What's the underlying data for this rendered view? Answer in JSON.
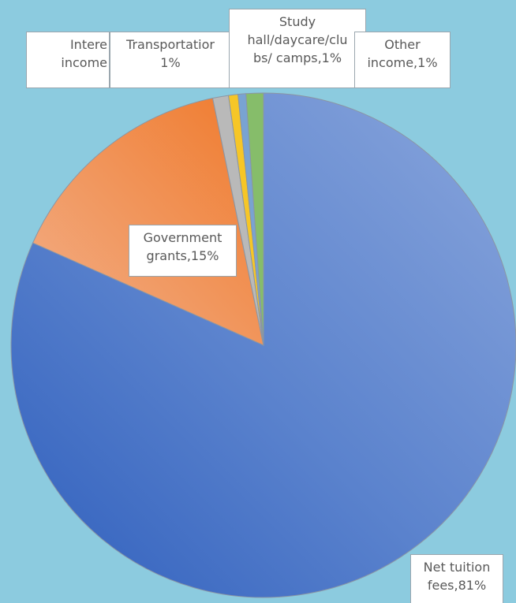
{
  "chart_data": {
    "type": "pie",
    "title": "",
    "slices": [
      {
        "name": "Net tuition fees",
        "value": 81,
        "color": "#6f93d4",
        "label_lines": [
          "Net tuition",
          "fees,81%"
        ]
      },
      {
        "name": "Government grants",
        "value": 15,
        "color": "#f0955a",
        "label_lines": [
          "Government",
          "grants,15%"
        ]
      },
      {
        "name": "Interest income",
        "value": 1,
        "color": "#b9b9b9",
        "label_lines": [
          "Intere",
          "income"
        ]
      },
      {
        "name": "Transportation",
        "value": 0.6,
        "color": "#f6c627",
        "label_lines": [
          "Transportatior",
          "1%"
        ]
      },
      {
        "name": "Study hall/daycare/clubs/ camps",
        "value": 0.5,
        "color": "#79a3d2",
        "label_lines": [
          "Study",
          "hall/daycare/clu",
          "bs/ camps,1%"
        ]
      },
      {
        "name": "Other income",
        "value": 1.1,
        "color": "#86bd6a",
        "label_lines": [
          "Other",
          "income,1%"
        ]
      }
    ]
  }
}
